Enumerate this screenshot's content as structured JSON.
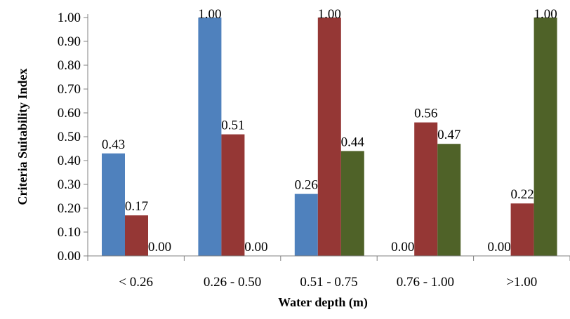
{
  "chart_data": {
    "type": "bar",
    "title": "",
    "xlabel": "Water depth (m)",
    "ylabel": "Criteria Suitability Index",
    "ylim": [
      0,
      1
    ],
    "ytick_labels": [
      "0.00",
      "0.10",
      "0.20",
      "0.30",
      "0.40",
      "0.50",
      "0.60",
      "0.70",
      "0.80",
      "0.90",
      "1.00"
    ],
    "categories": [
      "< 0.26",
      "0.26 - 0.50",
      "0.51 - 0.75",
      "0.76 - 1.00",
      ">1.00"
    ],
    "series": [
      {
        "color": "#4f81bd",
        "values": [
          0.43,
          1.0,
          0.26,
          0.0,
          0.0
        ],
        "labels": [
          "0.43",
          "1.00",
          "0.26",
          "0.00",
          "0.00"
        ]
      },
      {
        "color": "#953735",
        "values": [
          0.17,
          0.51,
          1.0,
          0.56,
          0.22
        ],
        "labels": [
          "0.17",
          "0.51",
          "1.00",
          "0.56",
          "0.22"
        ]
      },
      {
        "color": "#4f6228",
        "values": [
          0.0,
          0.0,
          0.44,
          0.47,
          1.0
        ],
        "labels": [
          "0.00",
          "0.00",
          "0.44",
          "0.47",
          "1.00"
        ]
      }
    ],
    "grid": false,
    "legend": "none"
  }
}
